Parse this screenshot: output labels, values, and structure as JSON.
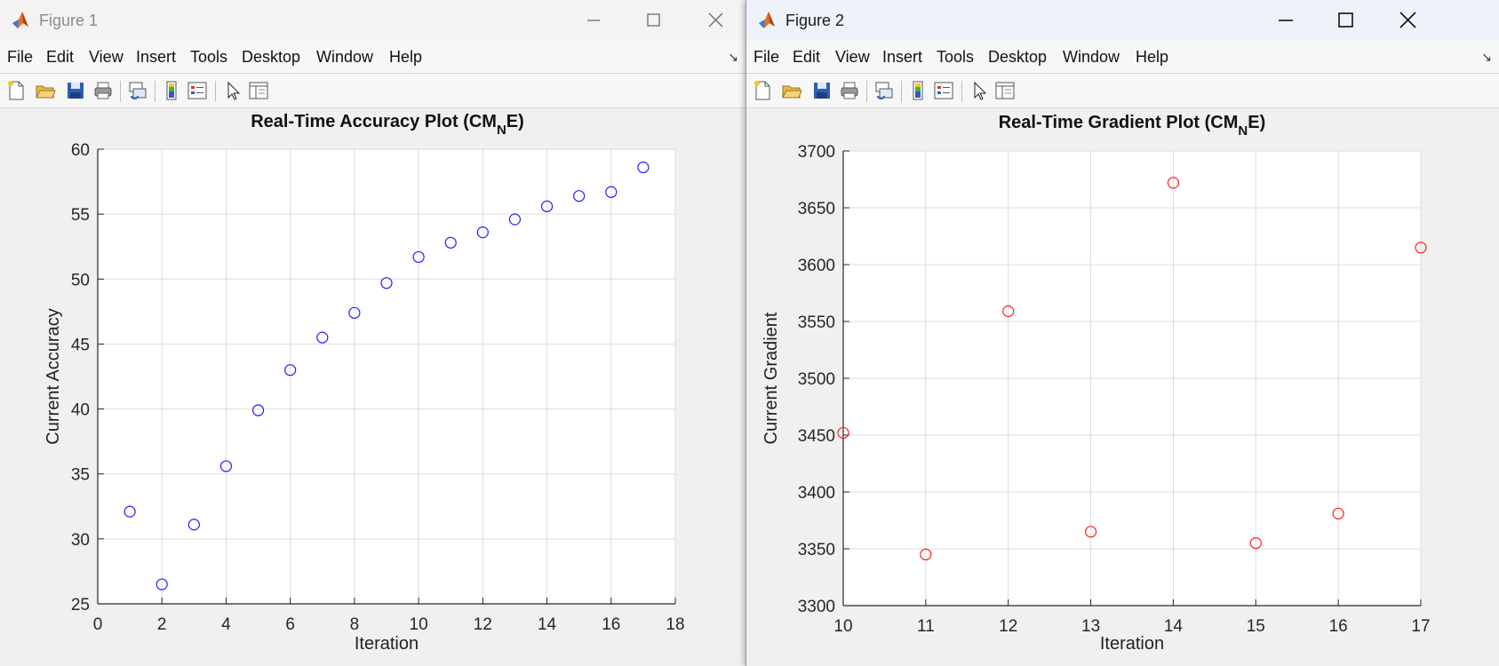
{
  "figures": [
    {
      "window_title": "Figure 1",
      "menu": [
        "File",
        "Edit",
        "View",
        "Insert",
        "Tools",
        "Desktop",
        "Window",
        "Help"
      ],
      "chart_data": {
        "type": "scatter",
        "title_main": "Real-Time Accuracy Plot (CM",
        "title_sub": "N",
        "title_end": "E)",
        "xlabel": "Iteration",
        "ylabel": "Current Accuracy",
        "xlim": [
          0,
          18
        ],
        "ylim": [
          25,
          60
        ],
        "xticks": [
          0,
          2,
          4,
          6,
          8,
          10,
          12,
          14,
          16,
          18
        ],
        "yticks": [
          25,
          30,
          35,
          40,
          45,
          50,
          55,
          60
        ],
        "grid": true,
        "marker": "circle",
        "color": "#1f1fff",
        "x": [
          1,
          2,
          3,
          4,
          5,
          6,
          7,
          8,
          9,
          10,
          11,
          12,
          13,
          14,
          15,
          16,
          17
        ],
        "y": [
          32.1,
          26.5,
          31.1,
          35.6,
          39.9,
          43.0,
          45.5,
          47.4,
          49.7,
          51.7,
          52.8,
          53.6,
          54.6,
          55.6,
          56.4,
          56.7,
          58.6
        ]
      }
    },
    {
      "window_title": "Figure 2",
      "menu": [
        "File",
        "Edit",
        "View",
        "Insert",
        "Tools",
        "Desktop",
        "Window",
        "Help"
      ],
      "chart_data": {
        "type": "scatter",
        "title_main": "Real-Time Gradient Plot (CM",
        "title_sub": "N",
        "title_end": "E)",
        "xlabel": "Iteration",
        "ylabel": "Current Gradient",
        "xlim": [
          10,
          17
        ],
        "ylim": [
          3300,
          3700
        ],
        "xticks": [
          10,
          11,
          12,
          13,
          14,
          15,
          16,
          17
        ],
        "yticks": [
          3300,
          3350,
          3400,
          3450,
          3500,
          3550,
          3600,
          3650,
          3700
        ],
        "grid": true,
        "marker": "circle",
        "color": "#ff1f1f",
        "x": [
          10,
          11,
          12,
          13,
          14,
          15,
          16,
          17
        ],
        "y": [
          3452,
          3345,
          3559,
          3365,
          3672,
          3355,
          3381,
          3615
        ]
      }
    }
  ]
}
